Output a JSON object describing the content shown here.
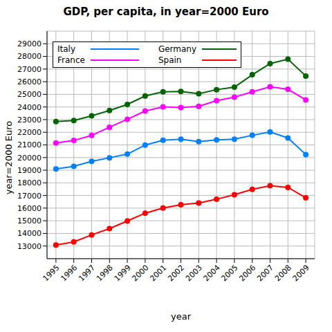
{
  "chart_data": {
    "type": "line",
    "title": "GDP, per capita, in year=2000 Euro",
    "x_label": "year",
    "y_label": "year=2000 Euro",
    "x": [
      1995,
      1996,
      1997,
      1998,
      1999,
      2000,
      2001,
      2002,
      2003,
      2004,
      2005,
      2006,
      2007,
      2008,
      2009
    ],
    "xlim": [
      1994.5,
      2009.5
    ],
    "xticks": [
      1995,
      1996,
      1997,
      1998,
      1999,
      2000,
      2001,
      2002,
      2003,
      2004,
      2005,
      2006,
      2007,
      2008,
      2009
    ],
    "ylim": [
      12000,
      30000
    ],
    "yticks": [
      13000,
      14000,
      15000,
      16000,
      17000,
      18000,
      19000,
      20000,
      21000,
      22000,
      23000,
      24000,
      25000,
      26000,
      27000,
      28000,
      29000
    ],
    "grid": true,
    "legend": "top-left",
    "marker": "circle",
    "series": [
      {
        "name": "Italy",
        "color": "#0080ff",
        "values": [
          19100,
          19300,
          19700,
          19980,
          20270,
          20990,
          21370,
          21450,
          21260,
          21400,
          21450,
          21760,
          22020,
          21550,
          20240
        ]
      },
      {
        "name": "France",
        "color": "#ff00ff",
        "values": [
          21150,
          21350,
          21750,
          22400,
          23030,
          23680,
          24010,
          23950,
          24050,
          24500,
          24770,
          25200,
          25600,
          25400,
          24560
        ]
      },
      {
        "name": "Germany",
        "color": "#006400",
        "values": [
          22850,
          22930,
          23300,
          23720,
          24200,
          24870,
          25200,
          25220,
          25050,
          25370,
          25570,
          26550,
          27430,
          27780,
          26450
        ]
      },
      {
        "name": "Spain",
        "color": "#ff0000",
        "values": [
          13080,
          13330,
          13880,
          14380,
          14980,
          15600,
          16010,
          16270,
          16400,
          16700,
          17060,
          17480,
          17770,
          17640,
          16820
        ]
      }
    ]
  }
}
